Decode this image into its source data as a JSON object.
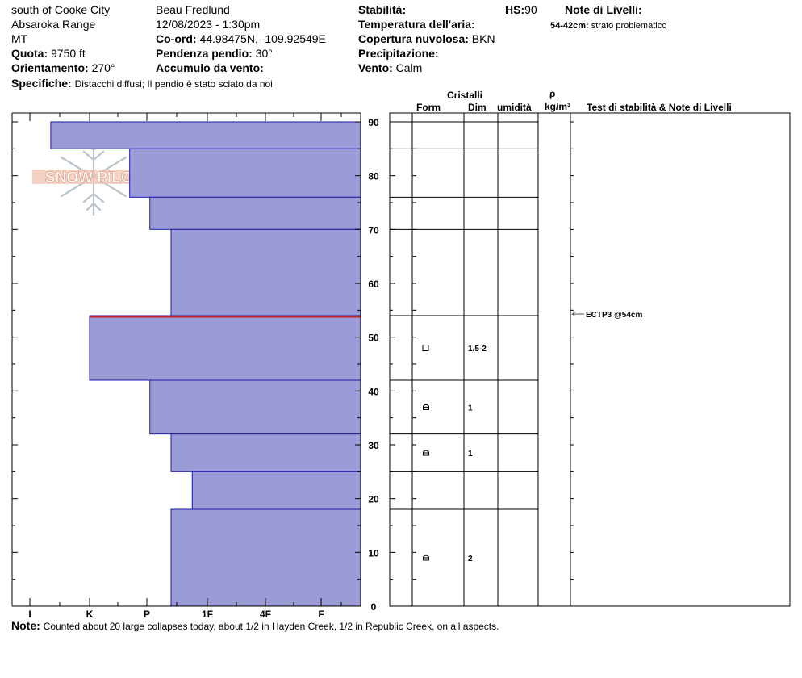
{
  "header": {
    "location": "south of Cooke City",
    "range": "Absaroka Range",
    "state": "MT",
    "quota_label": "Quota:",
    "quota_value": "9750 ft",
    "orient_label": "Orientamento:",
    "orient_value": "270°",
    "spec_label": "Specifiche:",
    "spec_value": "Distacchi diffusi;  Il pendio è stato sciato da noi",
    "observer": "Beau  Fredlund",
    "datetime": "12/08/2023 - 1:30pm",
    "coord_label": "Co-ord:",
    "coord_value": "44.98475N, -109.92549E",
    "slope_label": "Pendenza pendio:",
    "slope_value": "30°",
    "wind_load_label": "Accumulo da vento:",
    "stability_label": "Stabilità:",
    "hs_label": "HS:",
    "hs_value": "90",
    "air_temp_label": "Temperatura dell'aria:",
    "cloud_label": "Copertura nuvolosa:",
    "cloud_value": "BKN",
    "precip_label": "Precipitazione:",
    "wind_label": "Vento:",
    "wind_value": "Calm",
    "layer_notes_label": "Note di Livelli:",
    "layer_note_range": "54-42cm:",
    "layer_note_text": "strato problematico"
  },
  "columns": {
    "crystals": "Cristalli",
    "form": "Form",
    "dim": "Dim",
    "moisture": "umidità",
    "rho": "ρ",
    "density_unit": "kg/m³",
    "stability_notes": "Test di stabilità & Note di Livelli"
  },
  "logo_text": "SNOW PILOT",
  "note": {
    "label": "Note:",
    "text": "Counted about 20 large collapses today, about 1/2 in Hayden Creek, 1/2 in Republic Creek, on all aspects."
  },
  "chart_data": {
    "type": "bar",
    "orientation": "horizontal",
    "y_axis": {
      "range": [
        0,
        90
      ],
      "ticks": [
        0,
        10,
        20,
        30,
        40,
        50,
        60,
        70,
        80,
        90
      ]
    },
    "hardness_scale": [
      "I",
      "K",
      "P",
      "1F",
      "4F",
      "F"
    ],
    "layers": [
      {
        "top": 90,
        "bottom": 85,
        "hardness": 0.35
      },
      {
        "top": 85,
        "bottom": 76,
        "hardness": 1.7
      },
      {
        "top": 76,
        "bottom": 70,
        "hardness": 2.05
      },
      {
        "top": 70,
        "bottom": 54,
        "hardness": 2.4
      },
      {
        "top": 54,
        "bottom": 42,
        "hardness": 1.0
      },
      {
        "top": 42,
        "bottom": 32,
        "hardness": 2.05
      },
      {
        "top": 32,
        "bottom": 25,
        "hardness": 2.4
      },
      {
        "top": 25,
        "bottom": 18,
        "hardness": 2.75
      },
      {
        "top": 18,
        "bottom": 0,
        "hardness": 2.4
      }
    ],
    "problem_layer_depth": 54,
    "layer_lines": [
      90,
      85,
      76,
      70,
      54,
      42,
      32,
      25,
      18
    ],
    "grains": [
      {
        "depth": 48,
        "form": "square",
        "size": "1.5-2"
      },
      {
        "depth": 37,
        "form": "faceted",
        "size": "1"
      },
      {
        "depth": 28.5,
        "form": "faceted",
        "size": "1"
      },
      {
        "depth": 9,
        "form": "faceted",
        "size": "2"
      }
    ],
    "stability_tests": [
      {
        "depth": 54,
        "label": "ECTP3 @54cm"
      }
    ],
    "colors": {
      "fill": "#9b9bd8",
      "stroke": "#1a1aa8",
      "problem": "#c0272d"
    }
  }
}
